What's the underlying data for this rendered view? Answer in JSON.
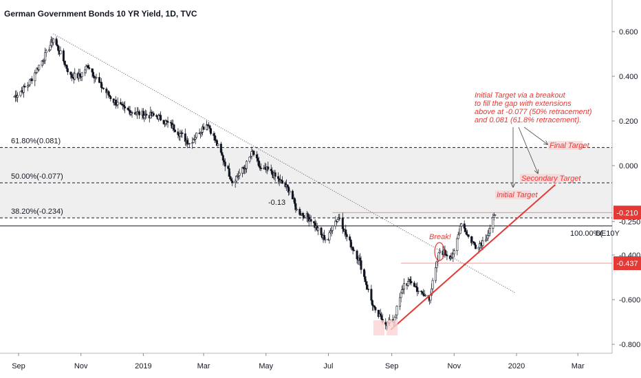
{
  "title": "German Government Bonds 10 YR Yield, 1D, TVC",
  "chart_data": {
    "type": "candlestick",
    "x_ticks": [
      "Sep",
      "Nov",
      "2019",
      "Mar",
      "May",
      "Jul",
      "Sep",
      "Nov",
      "2020",
      "Mar"
    ],
    "y_ticks": [
      "0.600",
      "0.400",
      "0.200",
      "0.000",
      "-0.250",
      "-0.400",
      "-0.600",
      "-0.800"
    ],
    "ylim": [
      -0.83,
      0.74
    ],
    "price_path": [
      [
        "2018-08-28",
        0.31
      ],
      [
        "2018-09-10",
        0.36
      ],
      [
        "2018-09-20",
        0.44
      ],
      [
        "2018-09-28",
        0.5
      ],
      [
        "2018-10-05",
        0.57
      ],
      [
        "2018-10-12",
        0.5
      ],
      [
        "2018-10-22",
        0.4
      ],
      [
        "2018-10-31",
        0.4
      ],
      [
        "2018-11-08",
        0.45
      ],
      [
        "2018-11-20",
        0.36
      ],
      [
        "2018-12-03",
        0.29
      ],
      [
        "2018-12-14",
        0.25
      ],
      [
        "2018-12-31",
        0.23
      ],
      [
        "2019-01-15",
        0.22
      ],
      [
        "2019-01-31",
        0.17
      ],
      [
        "2019-02-15",
        0.1
      ],
      [
        "2019-02-28",
        0.17
      ],
      [
        "2019-03-05",
        0.19
      ],
      [
        "2019-03-22",
        0.01
      ],
      [
        "2019-03-29",
        -0.07
      ],
      [
        "2019-04-10",
        -0.01
      ],
      [
        "2019-04-18",
        0.06
      ],
      [
        "2019-04-26",
        -0.02
      ],
      [
        "2019-05-03",
        -0.02
      ],
      [
        "2019-05-10",
        -0.05
      ],
      [
        "2019-05-24",
        -0.11
      ],
      [
        "2019-05-31",
        -0.2
      ],
      [
        "2019-06-14",
        -0.24
      ],
      [
        "2019-06-25",
        -0.32
      ],
      [
        "2019-07-01",
        -0.33
      ],
      [
        "2019-07-05",
        -0.26
      ],
      [
        "2019-07-12",
        -0.23
      ],
      [
        "2019-07-19",
        -0.32
      ],
      [
        "2019-07-31",
        -0.42
      ],
      [
        "2019-08-09",
        -0.56
      ],
      [
        "2019-08-16",
        -0.66
      ],
      [
        "2019-08-28",
        -0.71
      ],
      [
        "2019-09-03",
        -0.69
      ],
      [
        "2019-09-13",
        -0.53
      ],
      [
        "2019-09-20",
        -0.52
      ],
      [
        "2019-10-01",
        -0.58
      ],
      [
        "2019-10-08",
        -0.59
      ],
      [
        "2019-10-18",
        -0.38
      ],
      [
        "2019-10-31",
        -0.41
      ],
      [
        "2019-11-08",
        -0.25
      ],
      [
        "2019-11-15",
        -0.32
      ],
      [
        "2019-11-22",
        -0.36
      ],
      [
        "2019-11-29",
        -0.34
      ],
      [
        "2019-12-05",
        -0.3
      ],
      [
        "2019-12-11",
        -0.22
      ]
    ],
    "fib_levels": [
      {
        "label": "61.80%(0.081)",
        "value": 0.081
      },
      {
        "label": "50.00%(-0.077)",
        "value": -0.077
      },
      {
        "label": "38.20%(-0.234)",
        "value": -0.234
      },
      {
        "label": "100.00%(",
        "value": -0.27
      }
    ],
    "price_tags": [
      {
        "label": "-0.210",
        "value": -0.21
      },
      {
        "label": "-0.437",
        "value": -0.437
      }
    ],
    "current_label": "DE10Y",
    "annotations": {
      "note": [
        "Initial Target via a breakout",
        "to fill the gap with extensions",
        "above at -0.077 (50% retracement)",
        "and 0.081 (61.8% retracement)."
      ],
      "final_target": "Final Target",
      "secondary_target": "Secondary Target",
      "initial_target": "Initial Target",
      "break": "Break!",
      "level_label": "-0.13"
    },
    "colors": {
      "up": "#ffffff",
      "down": "#131722",
      "accent": "#e53935",
      "zone": "#efefef"
    }
  }
}
